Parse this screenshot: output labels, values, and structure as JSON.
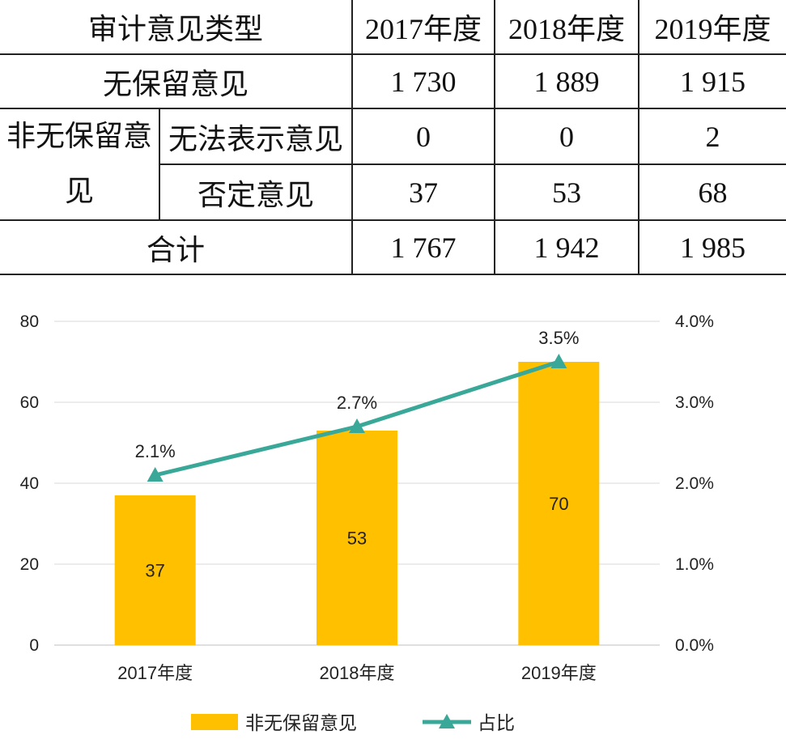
{
  "table": {
    "header": [
      "审计意见类型",
      "2017年度",
      "2018年度",
      "2019年度"
    ],
    "rows": [
      {
        "label": "无保留意见",
        "values": [
          "1 730",
          "1 889",
          "1 915"
        ]
      },
      {
        "group": "非无保留意见",
        "label": "无法表示意见",
        "values": [
          "0",
          "0",
          "2"
        ]
      },
      {
        "label": "否定意见",
        "values": [
          "37",
          "53",
          "68"
        ]
      },
      {
        "label": "合计",
        "values": [
          "1 767",
          "1 942",
          "1 985"
        ]
      }
    ]
  },
  "chart_data": {
    "type": "bar",
    "categories": [
      "2017年度",
      "2018年度",
      "2019年度"
    ],
    "series": [
      {
        "name": "非无保留意见",
        "type": "bar",
        "axis": "left",
        "values": [
          37,
          53,
          70
        ],
        "color": "#FFC000"
      },
      {
        "name": "占比",
        "type": "line",
        "axis": "right",
        "values": [
          2.1,
          2.7,
          3.5
        ],
        "data_labels": [
          "2.1%",
          "2.7%",
          "3.5%"
        ],
        "color": "#3AA899",
        "marker": "triangle"
      }
    ],
    "y_left": {
      "range": [
        0,
        80
      ],
      "ticks": [
        0,
        20,
        40,
        60,
        80
      ]
    },
    "y_right": {
      "range": [
        0,
        4
      ],
      "ticks": [
        "0.0%",
        "1.0%",
        "2.0%",
        "3.0%",
        "4.0%"
      ]
    },
    "grid": true,
    "legend": "bottom"
  }
}
